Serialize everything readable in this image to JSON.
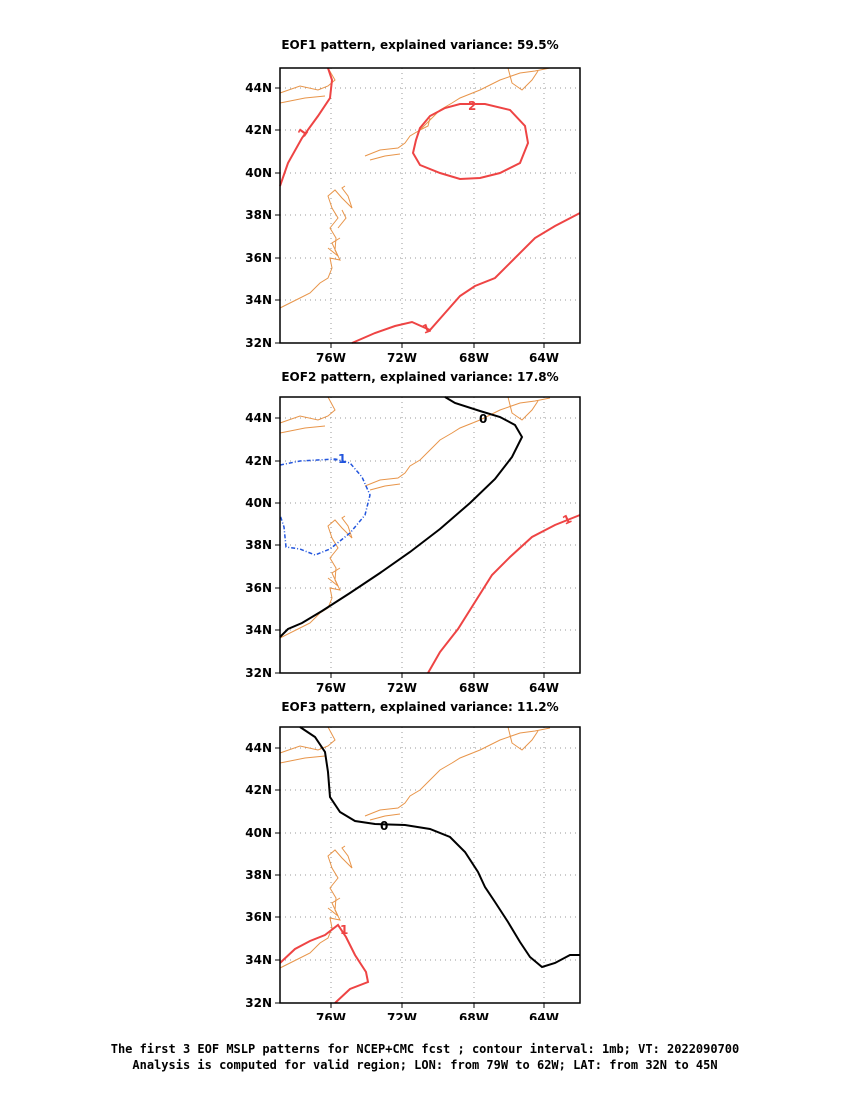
{
  "panels": [
    {
      "title": "EOF1 pattern, explained variance: 59.5%",
      "lat_ticks": [
        "44N",
        "42N",
        "40N",
        "38N",
        "36N",
        "34N",
        "32N"
      ],
      "lon_ticks": [
        "76W",
        "72W",
        "68W",
        "64W"
      ],
      "contour_labels": [
        {
          "text": "1",
          "color": "#ee4444"
        },
        {
          "text": "2",
          "color": "#ee4444"
        },
        {
          "text": "1",
          "color": "#ee4444"
        }
      ]
    },
    {
      "title": "EOF2 pattern, explained variance: 17.8%",
      "lat_ticks": [
        "44N",
        "42N",
        "40N",
        "38N",
        "36N",
        "34N",
        "32N"
      ],
      "lon_ticks": [
        "76W",
        "72W",
        "68W",
        "64W"
      ],
      "contour_labels": [
        {
          "text": "0",
          "color": "#000000"
        },
        {
          "text": "-1",
          "color": "#2255dd"
        },
        {
          "text": "1",
          "color": "#ee4444"
        }
      ]
    },
    {
      "title": "EOF3 pattern, explained variance: 11.2%",
      "lat_ticks": [
        "44N",
        "42N",
        "40N",
        "38N",
        "36N",
        "34N",
        "32N"
      ],
      "lon_ticks": [
        "76W",
        "72W",
        "68W",
        "64W"
      ],
      "contour_labels": [
        {
          "text": "0",
          "color": "#000000"
        },
        {
          "text": "1",
          "color": "#ee4444"
        }
      ]
    }
  ],
  "caption": {
    "line1": "The first 3 EOF MSLP patterns for NCEP+CMC fcst ; contour interval: 1mb; VT: 2022090700",
    "line2": "Analysis is computed for valid region; LON: from 79W to 62W; LAT: from 32N to 45N"
  },
  "colors": {
    "coastline": "#e8954a",
    "positive_contour": "#ee4444",
    "zero_contour": "#000000",
    "negative_contour": "#2255dd",
    "grid": "#999999"
  }
}
